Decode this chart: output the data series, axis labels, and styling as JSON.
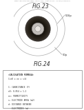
{
  "background_color": "#ffffff",
  "header_text": "Patent Application Publication   May 8, 2012   Sheet 23 of 24   US 2012/0113592 P1",
  "fig23_title": "FIG.23",
  "fig24_title": "FIG.24",
  "fig23_label_500p": "500p",
  "fig23_label_50p": "50p",
  "fig24_box_lines": [
    "<CALCULATION FORMULA>",
    "C=e0 x ee x s/d",
    " ",
    "C: CAPACITANCE (F)",
    "e0: 8.854 x 1.2",
    "ee: PERMITTIVITY",
    "s: ELECTRODE AREA (m2)",
    "d: DISTANCE BETWEEN",
    "   ELECTRODES (m)"
  ],
  "text_color": "#555555",
  "dark_text": "#333333",
  "box_edge": "#999999",
  "box_bg": "#ffffff"
}
